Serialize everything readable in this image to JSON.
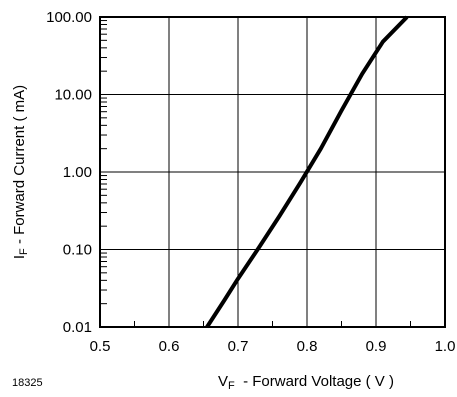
{
  "chart_data": {
    "type": "line",
    "figure_id": "18325",
    "xlabel": {
      "main": "V",
      "sub": "F",
      "rest": "  - Forward Voltage ( V )"
    },
    "ylabel": {
      "main": "I",
      "sub": "F",
      "rest": " - Forward Current ( mA)"
    },
    "xlim": [
      0.5,
      1.0
    ],
    "ylim": [
      0.01,
      100
    ],
    "yscale": "log",
    "grid": true,
    "x_ticks": [
      0.5,
      0.6,
      0.7,
      0.8,
      0.9,
      1.0
    ],
    "x_tick_labels": [
      "0.5",
      "0.6",
      "0.7",
      "0.8",
      "0.9",
      "1.0"
    ],
    "y_ticks": [
      0.01,
      0.1,
      1,
      10,
      100
    ],
    "y_tick_labels": [
      "0.01",
      "0.10",
      "1.00",
      "10.00",
      "100.00"
    ],
    "series": [
      {
        "color": "#000000",
        "x": [
          0.655,
          0.68,
          0.7,
          0.73,
          0.76,
          0.79,
          0.82,
          0.85,
          0.88,
          0.91,
          0.945
        ],
        "y": [
          0.01,
          0.022,
          0.042,
          0.105,
          0.27,
          0.72,
          2.0,
          6.2,
          18.5,
          48,
          100
        ]
      }
    ]
  }
}
